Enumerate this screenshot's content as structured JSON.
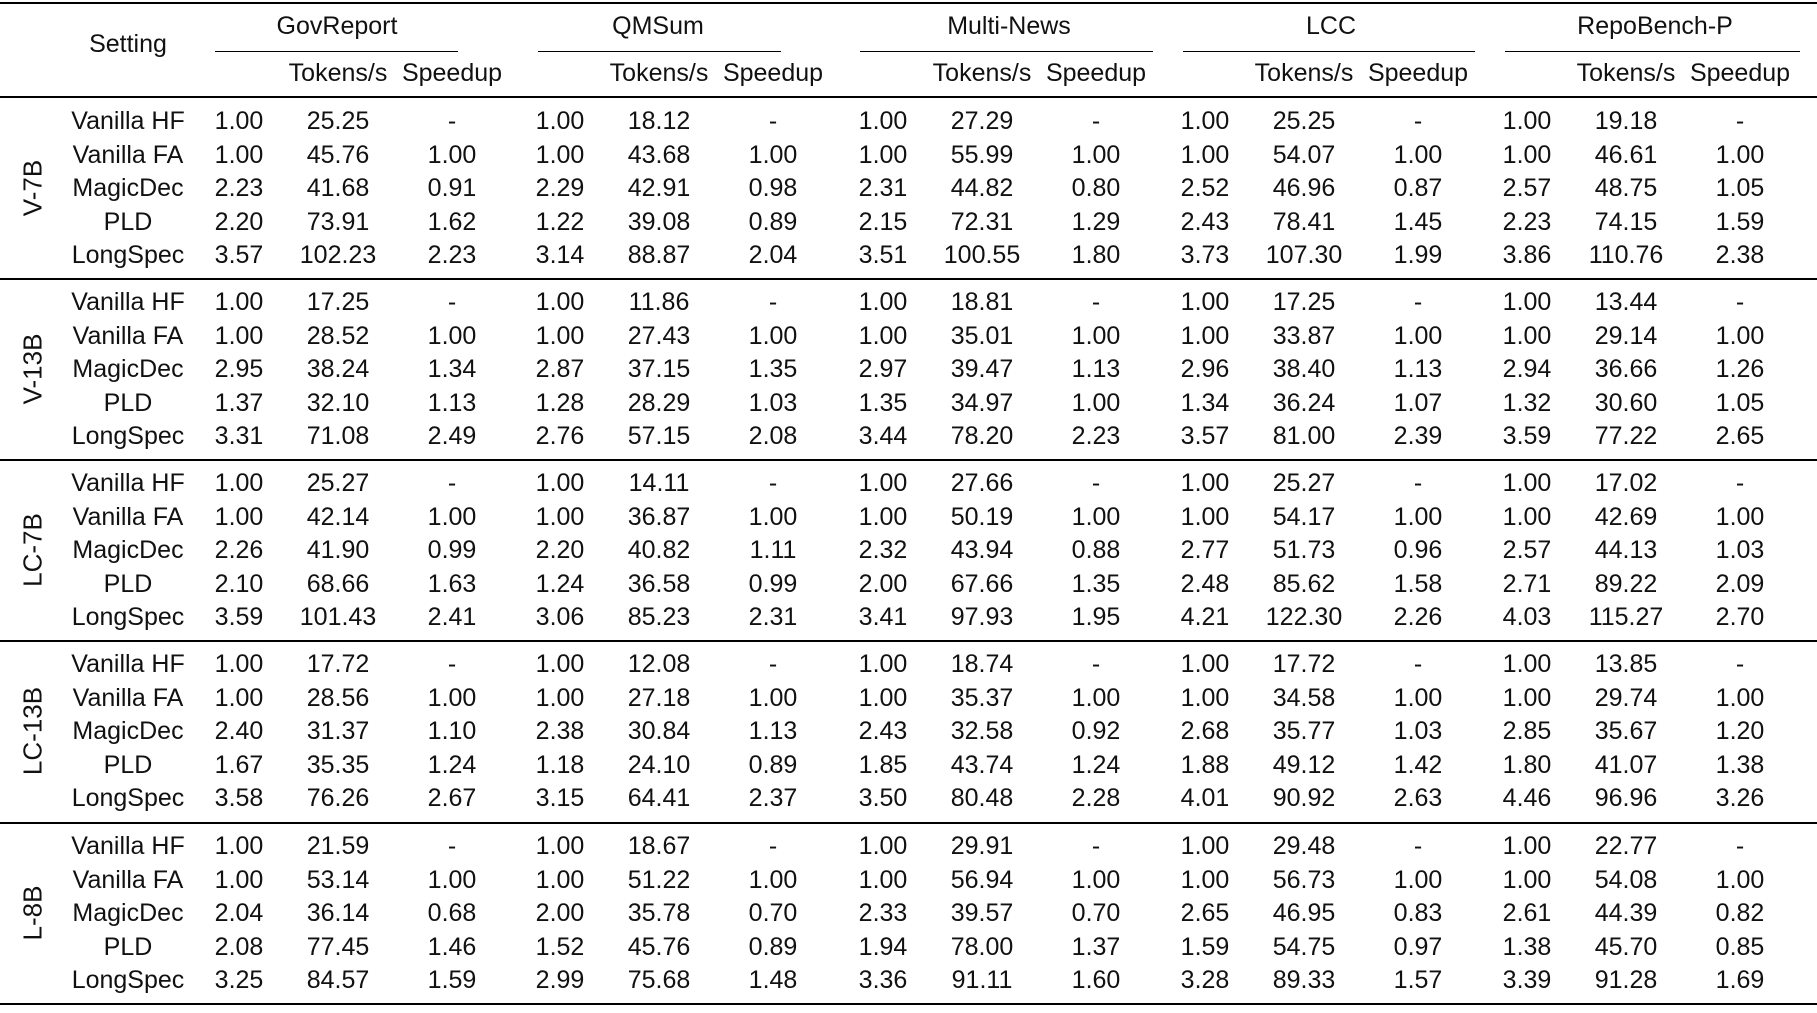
{
  "header": {
    "setting": "Setting",
    "datasets": [
      "GovReport",
      "QMSum",
      "Multi-News",
      "LCC",
      "RepoBench-P"
    ],
    "sub_tokens": "Tokens/s",
    "sub_speedup": "Speedup"
  },
  "groups": [
    {
      "model": "V-7B",
      "rows": [
        {
          "setting": "Vanilla HF",
          "cells": [
            [
              "1.00",
              "25.25",
              "-"
            ],
            [
              "1.00",
              "18.12",
              "-"
            ],
            [
              "1.00",
              "27.29",
              "-"
            ],
            [
              "1.00",
              "25.25",
              "-"
            ],
            [
              "1.00",
              "19.18",
              "-"
            ]
          ]
        },
        {
          "setting": "Vanilla FA",
          "cells": [
            [
              "1.00",
              "45.76",
              "1.00"
            ],
            [
              "1.00",
              "43.68",
              "1.00"
            ],
            [
              "1.00",
              "55.99",
              "1.00"
            ],
            [
              "1.00",
              "54.07",
              "1.00"
            ],
            [
              "1.00",
              "46.61",
              "1.00"
            ]
          ]
        },
        {
          "setting": "MagicDec",
          "cells": [
            [
              "2.23",
              "41.68",
              "0.91"
            ],
            [
              "2.29",
              "42.91",
              "0.98"
            ],
            [
              "2.31",
              "44.82",
              "0.80"
            ],
            [
              "2.52",
              "46.96",
              "0.87"
            ],
            [
              "2.57",
              "48.75",
              "1.05"
            ]
          ]
        },
        {
          "setting": "PLD",
          "cells": [
            [
              "2.20",
              "73.91",
              "1.62"
            ],
            [
              "1.22",
              "39.08",
              "0.89"
            ],
            [
              "2.15",
              "72.31",
              "1.29"
            ],
            [
              "2.43",
              "78.41",
              "1.45"
            ],
            [
              "2.23",
              "74.15",
              "1.59"
            ]
          ]
        },
        {
          "setting": "LongSpec",
          "cells": [
            [
              "3.57",
              "102.23",
              "2.23"
            ],
            [
              "3.14",
              "88.87",
              "2.04"
            ],
            [
              "3.51",
              "100.55",
              "1.80"
            ],
            [
              "3.73",
              "107.30",
              "1.99"
            ],
            [
              "3.86",
              "110.76",
              "2.38"
            ]
          ]
        }
      ]
    },
    {
      "model": "V-13B",
      "rows": [
        {
          "setting": "Vanilla HF",
          "cells": [
            [
              "1.00",
              "17.25",
              "-"
            ],
            [
              "1.00",
              "11.86",
              "-"
            ],
            [
              "1.00",
              "18.81",
              "-"
            ],
            [
              "1.00",
              "17.25",
              "-"
            ],
            [
              "1.00",
              "13.44",
              "-"
            ]
          ]
        },
        {
          "setting": "Vanilla FA",
          "cells": [
            [
              "1.00",
              "28.52",
              "1.00"
            ],
            [
              "1.00",
              "27.43",
              "1.00"
            ],
            [
              "1.00",
              "35.01",
              "1.00"
            ],
            [
              "1.00",
              "33.87",
              "1.00"
            ],
            [
              "1.00",
              "29.14",
              "1.00"
            ]
          ]
        },
        {
          "setting": "MagicDec",
          "cells": [
            [
              "2.95",
              "38.24",
              "1.34"
            ],
            [
              "2.87",
              "37.15",
              "1.35"
            ],
            [
              "2.97",
              "39.47",
              "1.13"
            ],
            [
              "2.96",
              "38.40",
              "1.13"
            ],
            [
              "2.94",
              "36.66",
              "1.26"
            ]
          ]
        },
        {
          "setting": "PLD",
          "cells": [
            [
              "1.37",
              "32.10",
              "1.13"
            ],
            [
              "1.28",
              "28.29",
              "1.03"
            ],
            [
              "1.35",
              "34.97",
              "1.00"
            ],
            [
              "1.34",
              "36.24",
              "1.07"
            ],
            [
              "1.32",
              "30.60",
              "1.05"
            ]
          ]
        },
        {
          "setting": "LongSpec",
          "cells": [
            [
              "3.31",
              "71.08",
              "2.49"
            ],
            [
              "2.76",
              "57.15",
              "2.08"
            ],
            [
              "3.44",
              "78.20",
              "2.23"
            ],
            [
              "3.57",
              "81.00",
              "2.39"
            ],
            [
              "3.59",
              "77.22",
              "2.65"
            ]
          ]
        }
      ]
    },
    {
      "model": "LC-7B",
      "rows": [
        {
          "setting": "Vanilla HF",
          "cells": [
            [
              "1.00",
              "25.27",
              "-"
            ],
            [
              "1.00",
              "14.11",
              "-"
            ],
            [
              "1.00",
              "27.66",
              "-"
            ],
            [
              "1.00",
              "25.27",
              "-"
            ],
            [
              "1.00",
              "17.02",
              "-"
            ]
          ]
        },
        {
          "setting": "Vanilla FA",
          "cells": [
            [
              "1.00",
              "42.14",
              "1.00"
            ],
            [
              "1.00",
              "36.87",
              "1.00"
            ],
            [
              "1.00",
              "50.19",
              "1.00"
            ],
            [
              "1.00",
              "54.17",
              "1.00"
            ],
            [
              "1.00",
              "42.69",
              "1.00"
            ]
          ]
        },
        {
          "setting": "MagicDec",
          "cells": [
            [
              "2.26",
              "41.90",
              "0.99"
            ],
            [
              "2.20",
              "40.82",
              "1.11"
            ],
            [
              "2.32",
              "43.94",
              "0.88"
            ],
            [
              "2.77",
              "51.73",
              "0.96"
            ],
            [
              "2.57",
              "44.13",
              "1.03"
            ]
          ]
        },
        {
          "setting": "PLD",
          "cells": [
            [
              "2.10",
              "68.66",
              "1.63"
            ],
            [
              "1.24",
              "36.58",
              "0.99"
            ],
            [
              "2.00",
              "67.66",
              "1.35"
            ],
            [
              "2.48",
              "85.62",
              "1.58"
            ],
            [
              "2.71",
              "89.22",
              "2.09"
            ]
          ]
        },
        {
          "setting": "LongSpec",
          "cells": [
            [
              "3.59",
              "101.43",
              "2.41"
            ],
            [
              "3.06",
              "85.23",
              "2.31"
            ],
            [
              "3.41",
              "97.93",
              "1.95"
            ],
            [
              "4.21",
              "122.30",
              "2.26"
            ],
            [
              "4.03",
              "115.27",
              "2.70"
            ]
          ]
        }
      ]
    },
    {
      "model": "LC-13B",
      "rows": [
        {
          "setting": "Vanilla HF",
          "cells": [
            [
              "1.00",
              "17.72",
              "-"
            ],
            [
              "1.00",
              "12.08",
              "-"
            ],
            [
              "1.00",
              "18.74",
              "-"
            ],
            [
              "1.00",
              "17.72",
              "-"
            ],
            [
              "1.00",
              "13.85",
              "-"
            ]
          ]
        },
        {
          "setting": "Vanilla FA",
          "cells": [
            [
              "1.00",
              "28.56",
              "1.00"
            ],
            [
              "1.00",
              "27.18",
              "1.00"
            ],
            [
              "1.00",
              "35.37",
              "1.00"
            ],
            [
              "1.00",
              "34.58",
              "1.00"
            ],
            [
              "1.00",
              "29.74",
              "1.00"
            ]
          ]
        },
        {
          "setting": "MagicDec",
          "cells": [
            [
              "2.40",
              "31.37",
              "1.10"
            ],
            [
              "2.38",
              "30.84",
              "1.13"
            ],
            [
              "2.43",
              "32.58",
              "0.92"
            ],
            [
              "2.68",
              "35.77",
              "1.03"
            ],
            [
              "2.85",
              "35.67",
              "1.20"
            ]
          ]
        },
        {
          "setting": "PLD",
          "cells": [
            [
              "1.67",
              "35.35",
              "1.24"
            ],
            [
              "1.18",
              "24.10",
              "0.89"
            ],
            [
              "1.85",
              "43.74",
              "1.24"
            ],
            [
              "1.88",
              "49.12",
              "1.42"
            ],
            [
              "1.80",
              "41.07",
              "1.38"
            ]
          ]
        },
        {
          "setting": "LongSpec",
          "cells": [
            [
              "3.58",
              "76.26",
              "2.67"
            ],
            [
              "3.15",
              "64.41",
              "2.37"
            ],
            [
              "3.50",
              "80.48",
              "2.28"
            ],
            [
              "4.01",
              "90.92",
              "2.63"
            ],
            [
              "4.46",
              "96.96",
              "3.26"
            ]
          ]
        }
      ]
    },
    {
      "model": "L-8B",
      "rows": [
        {
          "setting": "Vanilla HF",
          "cells": [
            [
              "1.00",
              "21.59",
              "-"
            ],
            [
              "1.00",
              "18.67",
              "-"
            ],
            [
              "1.00",
              "29.91",
              "-"
            ],
            [
              "1.00",
              "29.48",
              "-"
            ],
            [
              "1.00",
              "22.77",
              "-"
            ]
          ]
        },
        {
          "setting": "Vanilla FA",
          "cells": [
            [
              "1.00",
              "53.14",
              "1.00"
            ],
            [
              "1.00",
              "51.22",
              "1.00"
            ],
            [
              "1.00",
              "56.94",
              "1.00"
            ],
            [
              "1.00",
              "56.73",
              "1.00"
            ],
            [
              "1.00",
              "54.08",
              "1.00"
            ]
          ]
        },
        {
          "setting": "MagicDec",
          "cells": [
            [
              "2.04",
              "36.14",
              "0.68"
            ],
            [
              "2.00",
              "35.78",
              "0.70"
            ],
            [
              "2.33",
              "39.57",
              "0.70"
            ],
            [
              "2.65",
              "46.95",
              "0.83"
            ],
            [
              "2.61",
              "44.39",
              "0.82"
            ]
          ]
        },
        {
          "setting": "PLD",
          "cells": [
            [
              "2.08",
              "77.45",
              "1.46"
            ],
            [
              "1.52",
              "45.76",
              "0.89"
            ],
            [
              "1.94",
              "78.00",
              "1.37"
            ],
            [
              "1.59",
              "54.75",
              "0.97"
            ],
            [
              "1.38",
              "45.70",
              "0.85"
            ]
          ]
        },
        {
          "setting": "LongSpec",
          "cells": [
            [
              "3.25",
              "84.57",
              "1.59"
            ],
            [
              "2.99",
              "75.68",
              "1.48"
            ],
            [
              "3.36",
              "91.11",
              "1.60"
            ],
            [
              "3.28",
              "89.33",
              "1.57"
            ],
            [
              "3.39",
              "91.28",
              "1.69"
            ]
          ]
        }
      ]
    }
  ]
}
